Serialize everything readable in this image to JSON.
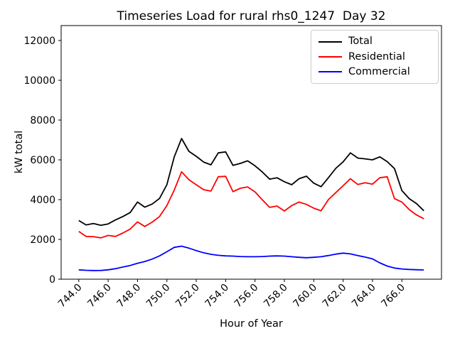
{
  "chart_data": {
    "type": "line",
    "title": "Timeseries Load for rural rhs0_1247  Day 32",
    "xlabel": "Hour of Year",
    "ylabel": "kW total",
    "grid": false,
    "background": "#ffffff",
    "axes_color": "#000000",
    "xlim": [
      742.8,
      768.7
    ],
    "ylim": [
      0,
      12750
    ],
    "x_ticks": [
      744,
      746,
      748,
      750,
      752,
      754,
      756,
      758,
      760,
      762,
      764,
      766
    ],
    "x_tick_labels": [
      "744.0",
      "746.0",
      "748.0",
      "750.0",
      "752.0",
      "754.0",
      "756.0",
      "758.0",
      "760.0",
      "762.0",
      "764.0",
      "766.0"
    ],
    "y_ticks": [
      0,
      2000,
      4000,
      6000,
      8000,
      10000,
      12000
    ],
    "y_tick_labels": [
      "0",
      "2000",
      "4000",
      "6000",
      "8000",
      "10000",
      "12000"
    ],
    "legend": {
      "position": "upper right",
      "entries": [
        "Total",
        "Residential",
        "Commercial"
      ]
    },
    "x": [
      744.0,
      744.5,
      745.0,
      745.5,
      746.0,
      746.5,
      747.0,
      747.5,
      748.0,
      748.5,
      749.0,
      749.5,
      750.0,
      750.5,
      751.0,
      751.5,
      752.0,
      752.5,
      753.0,
      753.5,
      754.0,
      754.5,
      755.0,
      755.5,
      756.0,
      756.5,
      757.0,
      757.5,
      758.0,
      758.5,
      759.0,
      759.5,
      760.0,
      760.5,
      761.0,
      761.5,
      762.0,
      762.5,
      763.0,
      763.5,
      764.0,
      764.5,
      765.0,
      765.5,
      766.0,
      766.5,
      767.0,
      767.5
    ],
    "series": [
      {
        "name": "Total",
        "color": "#000000",
        "values": [
          2950,
          2730,
          2800,
          2710,
          2780,
          2980,
          3150,
          3350,
          3880,
          3620,
          3780,
          4060,
          4750,
          6150,
          7070,
          6430,
          6180,
          5890,
          5750,
          6350,
          6400,
          5720,
          5820,
          5950,
          5700,
          5390,
          5030,
          5100,
          4900,
          4750,
          5050,
          5180,
          4830,
          4650,
          5100,
          5570,
          5900,
          6350,
          6090,
          6050,
          6000,
          6150,
          5910,
          5560,
          4460,
          4050,
          3800,
          3440
        ]
      },
      {
        "name": "Residential",
        "color": "#ff0000",
        "values": [
          2400,
          2150,
          2140,
          2080,
          2200,
          2150,
          2320,
          2520,
          2880,
          2650,
          2870,
          3150,
          3700,
          4480,
          5400,
          5000,
          4750,
          4500,
          4430,
          5150,
          5170,
          4400,
          4570,
          4640,
          4390,
          3990,
          3610,
          3680,
          3430,
          3700,
          3880,
          3760,
          3570,
          3440,
          4000,
          4350,
          4700,
          5050,
          4760,
          4850,
          4780,
          5100,
          5150,
          4050,
          3880,
          3500,
          3230,
          3040
        ]
      },
      {
        "name": "Commercial",
        "color": "#0000ff",
        "values": [
          470,
          445,
          435,
          440,
          470,
          530,
          610,
          690,
          800,
          890,
          1010,
          1170,
          1380,
          1600,
          1660,
          1560,
          1440,
          1330,
          1250,
          1200,
          1170,
          1160,
          1140,
          1130,
          1130,
          1140,
          1160,
          1170,
          1160,
          1130,
          1100,
          1080,
          1100,
          1130,
          1190,
          1260,
          1310,
          1270,
          1190,
          1110,
          1020,
          820,
          660,
          560,
          515,
          490,
          475,
          465
        ]
      }
    ]
  }
}
